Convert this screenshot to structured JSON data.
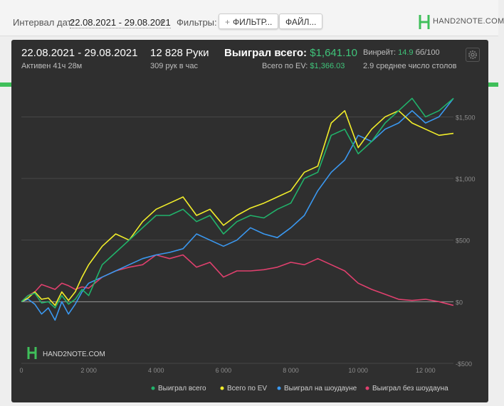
{
  "filters": {
    "interval_label": "Интервал дат:",
    "date_range": "22.08.2021 - 29.08.2021",
    "filters_label": "Фильтры:",
    "filter_button": "ФИЛЬТР...",
    "file_button": "ФАЙЛ..."
  },
  "brand": {
    "logo_text": "HAND2NOTE.COM"
  },
  "summary": {
    "period": "22.08.2021 - 29.08.2021",
    "active": "Активен 41ч 28м",
    "hands": "12 828 Руки",
    "hands_per_hour": "309 рук в час",
    "won_label": "Выиграл всего:",
    "won_value": "$1,641.10",
    "ev_label": "Всего по EV:",
    "ev_value": "$1,366.03",
    "winrate_label": "Винрейт:",
    "winrate_value": "14.9",
    "winrate_unit": "бб/100",
    "tables": "2.9 среднее число столов"
  },
  "colors": {
    "won": "#21b36b",
    "ev": "#f2ee2a",
    "showdown": "#3a98f0",
    "nonshowdown": "#e0406e",
    "panel": "#2f2f2f"
  },
  "chart_data": {
    "type": "line",
    "xlim": [
      0,
      12828
    ],
    "ylim": [
      -500,
      1900
    ],
    "xticks": [
      0,
      2000,
      4000,
      6000,
      8000,
      10000,
      12000
    ],
    "xtick_labels": [
      "0",
      "2 000",
      "4 000",
      "6 000",
      "8 000",
      "10 000",
      "12 000"
    ],
    "yticks": [
      -500,
      0,
      500,
      1000,
      1500
    ],
    "ytick_labels": [
      "-$500",
      "$0",
      "$500",
      "$1,000",
      "$1,500"
    ],
    "grid": true,
    "legend_position": "bottom",
    "watermark": "HAND2NOTE.COM",
    "x": [
      0,
      200,
      400,
      600,
      800,
      1000,
      1200,
      1400,
      1600,
      1800,
      2000,
      2400,
      2800,
      3200,
      3600,
      4000,
      4400,
      4800,
      5200,
      5600,
      6000,
      6400,
      6800,
      7200,
      7600,
      8000,
      8400,
      8800,
      9200,
      9600,
      10000,
      10400,
      10800,
      11200,
      11600,
      12000,
      12400,
      12828
    ],
    "series": [
      {
        "name": "Выиграл всего",
        "values": [
          0,
          50,
          70,
          -10,
          0,
          -50,
          50,
          -20,
          20,
          100,
          50,
          300,
          400,
          500,
          600,
          700,
          700,
          750,
          650,
          700,
          550,
          650,
          700,
          680,
          750,
          800,
          1000,
          1050,
          1350,
          1400,
          1200,
          1300,
          1450,
          1550,
          1650,
          1500,
          1550,
          1650
        ]
      },
      {
        "name": "Всего по EV",
        "values": [
          0,
          30,
          80,
          20,
          30,
          -30,
          80,
          10,
          80,
          200,
          300,
          450,
          550,
          500,
          650,
          750,
          800,
          850,
          700,
          750,
          620,
          700,
          760,
          800,
          850,
          900,
          1050,
          1100,
          1450,
          1550,
          1250,
          1400,
          1500,
          1550,
          1450,
          1400,
          1350,
          1366
        ]
      },
      {
        "name": "Выиграл на шоудауне",
        "values": [
          0,
          20,
          -20,
          -100,
          -50,
          -150,
          0,
          -100,
          -20,
          80,
          150,
          200,
          250,
          300,
          350,
          380,
          400,
          430,
          550,
          500,
          450,
          500,
          600,
          550,
          520,
          600,
          700,
          900,
          1050,
          1150,
          1350,
          1300,
          1400,
          1450,
          1550,
          1450,
          1500,
          1650
        ]
      },
      {
        "name": "Выиграл без шоудауна",
        "values": [
          0,
          50,
          80,
          140,
          120,
          100,
          150,
          130,
          100,
          120,
          110,
          200,
          250,
          280,
          300,
          380,
          350,
          380,
          280,
          320,
          200,
          250,
          250,
          260,
          280,
          320,
          300,
          350,
          300,
          250,
          150,
          100,
          60,
          20,
          10,
          20,
          0,
          -30
        ]
      }
    ]
  }
}
